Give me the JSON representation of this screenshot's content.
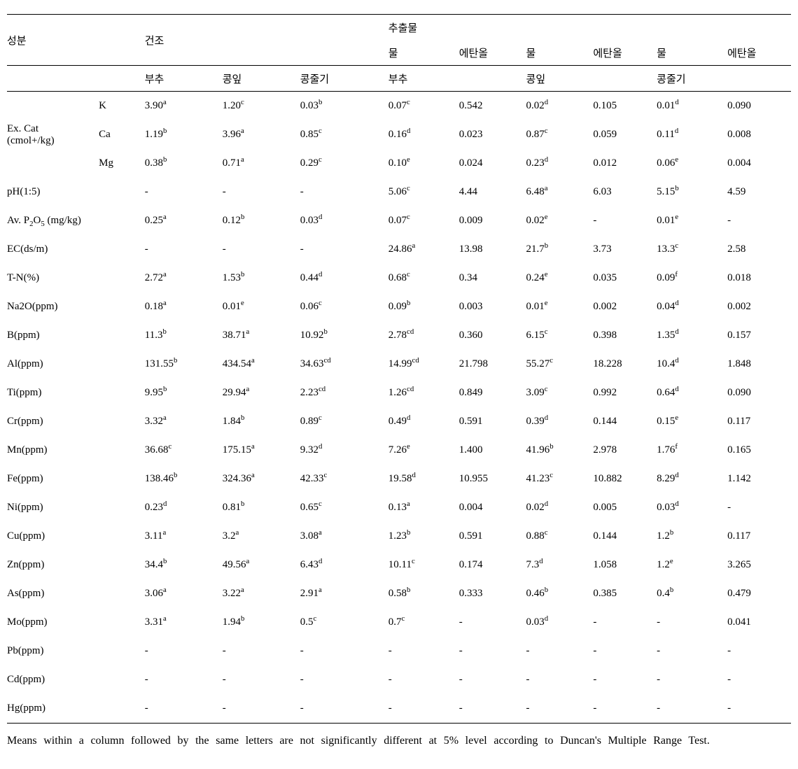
{
  "header": {
    "row_label": "성분",
    "dry_label": "건조",
    "extract_label": "추출물",
    "dry_cols": [
      "부추",
      "콩잎",
      "콩줄기"
    ],
    "extract_top": [
      "물",
      "에탄올",
      "물",
      "에탄올",
      "물",
      "에탄올"
    ],
    "extract_groups": [
      "부추",
      "콩잎",
      "콩줄기"
    ]
  },
  "excat": {
    "label": "Ex. Cat",
    "unit": "(cmol+/kg)",
    "K": {
      "sym": "K",
      "d": [
        {
          "v": "3.90",
          "s": "a"
        },
        {
          "v": "1.20",
          "s": "c"
        },
        {
          "v": "0.03",
          "s": "b"
        }
      ],
      "e": [
        {
          "v": "0.07",
          "s": "c"
        },
        {
          "v": "0.542"
        },
        {
          "v": "0.02",
          "s": "d"
        },
        {
          "v": "0.105"
        },
        {
          "v": "0.01",
          "s": "d"
        },
        {
          "v": "0.090"
        }
      ]
    },
    "Ca": {
      "sym": "Ca",
      "d": [
        {
          "v": "1.19",
          "s": "b"
        },
        {
          "v": "3.96",
          "s": "a"
        },
        {
          "v": "0.85",
          "s": "c"
        }
      ],
      "e": [
        {
          "v": "0.16",
          "s": "d"
        },
        {
          "v": "0.023"
        },
        {
          "v": "0.87",
          "s": "c"
        },
        {
          "v": "0.059"
        },
        {
          "v": "0.11",
          "s": "d"
        },
        {
          "v": "0.008"
        }
      ]
    },
    "Mg": {
      "sym": "Mg",
      "d": [
        {
          "v": "0.38",
          "s": "b"
        },
        {
          "v": "0.71",
          "s": "a"
        },
        {
          "v": "0.29",
          "s": "c"
        }
      ],
      "e": [
        {
          "v": "0.10",
          "s": "e"
        },
        {
          "v": "0.024"
        },
        {
          "v": "0.23",
          "s": "d"
        },
        {
          "v": "0.012"
        },
        {
          "v": "0.06",
          "s": "e"
        },
        {
          "v": "0.004"
        }
      ]
    }
  },
  "rows": [
    {
      "label": "pH(1:5)",
      "d": [
        {
          "v": "-"
        },
        {
          "v": "-"
        },
        {
          "v": "-"
        }
      ],
      "e": [
        {
          "v": "5.06",
          "s": "c"
        },
        {
          "v": "4.44"
        },
        {
          "v": "6.48",
          "s": "a"
        },
        {
          "v": "6.03"
        },
        {
          "v": "5.15",
          "s": "b"
        },
        {
          "v": "4.59"
        }
      ]
    },
    {
      "label": "Av. P2O5 (mg/kg)",
      "p2o5": true,
      "d": [
        {
          "v": "0.25",
          "s": "a"
        },
        {
          "v": "0.12",
          "s": "b"
        },
        {
          "v": "0.03",
          "s": "d"
        }
      ],
      "e": [
        {
          "v": "0.07",
          "s": "c"
        },
        {
          "v": "0.009"
        },
        {
          "v": "0.02",
          "s": "e"
        },
        {
          "v": "-"
        },
        {
          "v": "0.01",
          "s": "e"
        },
        {
          "v": "-"
        }
      ]
    },
    {
      "label": "EC(ds/m)",
      "d": [
        {
          "v": "-"
        },
        {
          "v": "-"
        },
        {
          "v": "-"
        }
      ],
      "e": [
        {
          "v": "24.86",
          "s": "a"
        },
        {
          "v": "13.98"
        },
        {
          "v": "21.7",
          "s": "b"
        },
        {
          "v": "3.73"
        },
        {
          "v": "13.3",
          "s": "c"
        },
        {
          "v": "2.58"
        }
      ]
    },
    {
      "label": "T-N(%)",
      "d": [
        {
          "v": "2.72",
          "s": "a"
        },
        {
          "v": "1.53",
          "s": "b"
        },
        {
          "v": "0.44",
          "s": "d"
        }
      ],
      "e": [
        {
          "v": "0.68",
          "s": "c"
        },
        {
          "v": "0.34"
        },
        {
          "v": "0.24",
          "s": "e"
        },
        {
          "v": "0.035"
        },
        {
          "v": "0.09",
          "s": "f"
        },
        {
          "v": "0.018"
        }
      ]
    },
    {
      "label": "Na2O(ppm)",
      "d": [
        {
          "v": "0.18",
          "s": "a"
        },
        {
          "v": "0.01",
          "s": "e"
        },
        {
          "v": "0.06",
          "s": "c"
        }
      ],
      "e": [
        {
          "v": "0.09",
          "s": "b"
        },
        {
          "v": "0.003"
        },
        {
          "v": "0.01",
          "s": "e"
        },
        {
          "v": "0.002"
        },
        {
          "v": "0.04",
          "s": "d"
        },
        {
          "v": "0.002"
        }
      ]
    },
    {
      "label": "B(ppm)",
      "d": [
        {
          "v": "11.3",
          "s": "b"
        },
        {
          "v": "38.71",
          "s": "a"
        },
        {
          "v": "10.92",
          "s": "b"
        }
      ],
      "e": [
        {
          "v": "2.78",
          "s": "cd"
        },
        {
          "v": "0.360"
        },
        {
          "v": "6.15",
          "s": "c"
        },
        {
          "v": "0.398"
        },
        {
          "v": "1.35",
          "s": "d"
        },
        {
          "v": "0.157"
        }
      ]
    },
    {
      "label": "Al(ppm)",
      "d": [
        {
          "v": "131.55",
          "s": "b"
        },
        {
          "v": "434.54",
          "s": "a"
        },
        {
          "v": "34.63",
          "s": "cd"
        }
      ],
      "e": [
        {
          "v": "14.99",
          "s": "cd"
        },
        {
          "v": "21.798"
        },
        {
          "v": "55.27",
          "s": "c"
        },
        {
          "v": "18.228"
        },
        {
          "v": "10.4",
          "s": "d"
        },
        {
          "v": "1.848"
        }
      ]
    },
    {
      "label": "Ti(ppm)",
      "d": [
        {
          "v": "9.95",
          "s": "b"
        },
        {
          "v": "29.94",
          "s": "a"
        },
        {
          "v": "2.23",
          "s": "cd"
        }
      ],
      "e": [
        {
          "v": "1.26",
          "s": "cd"
        },
        {
          "v": "0.849"
        },
        {
          "v": "3.09",
          "s": "c"
        },
        {
          "v": "0.992"
        },
        {
          "v": "0.64",
          "s": "d"
        },
        {
          "v": "0.090"
        }
      ]
    },
    {
      "label": "Cr(ppm)",
      "d": [
        {
          "v": "3.32",
          "s": "a"
        },
        {
          "v": "1.84",
          "s": "b"
        },
        {
          "v": "0.89",
          "s": "c"
        }
      ],
      "e": [
        {
          "v": "0.49",
          "s": "d"
        },
        {
          "v": "0.591"
        },
        {
          "v": "0.39",
          "s": "d"
        },
        {
          "v": "0.144"
        },
        {
          "v": "0.15",
          "s": "e"
        },
        {
          "v": "0.117"
        }
      ]
    },
    {
      "label": "Mn(ppm)",
      "d": [
        {
          "v": "36.68",
          "s": "c"
        },
        {
          "v": "175.15",
          "s": "a"
        },
        {
          "v": "9.32",
          "s": "d"
        }
      ],
      "e": [
        {
          "v": "7.26",
          "s": "e"
        },
        {
          "v": "1.400"
        },
        {
          "v": "41.96",
          "s": "b"
        },
        {
          "v": "2.978"
        },
        {
          "v": "1.76",
          "s": "f"
        },
        {
          "v": "0.165"
        }
      ]
    },
    {
      "label": "Fe(ppm)",
      "d": [
        {
          "v": "138.46",
          "s": "b"
        },
        {
          "v": "324.36",
          "s": "a"
        },
        {
          "v": "42.33",
          "s": "c"
        }
      ],
      "e": [
        {
          "v": "19.58",
          "s": "d"
        },
        {
          "v": "10.955"
        },
        {
          "v": "41.23",
          "s": "c"
        },
        {
          "v": "10.882"
        },
        {
          "v": "8.29",
          "s": "d"
        },
        {
          "v": "1.142"
        }
      ]
    },
    {
      "label": "Ni(ppm)",
      "d": [
        {
          "v": "0.23",
          "s": "d"
        },
        {
          "v": "0.81",
          "s": "b"
        },
        {
          "v": "0.65",
          "s": "c"
        }
      ],
      "e": [
        {
          "v": "0.13",
          "s": "a"
        },
        {
          "v": "0.004"
        },
        {
          "v": "0.02",
          "s": "d"
        },
        {
          "v": "0.005"
        },
        {
          "v": "0.03",
          "s": "d"
        },
        {
          "v": "-"
        }
      ]
    },
    {
      "label": "Cu(ppm)",
      "d": [
        {
          "v": "3.11",
          "s": "a"
        },
        {
          "v": "3.2",
          "s": "a"
        },
        {
          "v": "3.08",
          "s": "a"
        }
      ],
      "e": [
        {
          "v": "1.23",
          "s": "b"
        },
        {
          "v": "0.591"
        },
        {
          "v": "0.88",
          "s": "c"
        },
        {
          "v": "0.144"
        },
        {
          "v": "1.2",
          "s": "b"
        },
        {
          "v": "0.117"
        }
      ]
    },
    {
      "label": "Zn(ppm)",
      "d": [
        {
          "v": "34.4",
          "s": "b"
        },
        {
          "v": "49.56",
          "s": "a"
        },
        {
          "v": "6.43",
          "s": "d"
        }
      ],
      "e": [
        {
          "v": "10.11",
          "s": "c"
        },
        {
          "v": "0.174"
        },
        {
          "v": "7.3",
          "s": "d"
        },
        {
          "v": "1.058"
        },
        {
          "v": "1.2",
          "s": "e"
        },
        {
          "v": "3.265"
        }
      ]
    },
    {
      "label": "As(ppm)",
      "d": [
        {
          "v": "3.06",
          "s": "a"
        },
        {
          "v": "3.22",
          "s": "a"
        },
        {
          "v": "2.91",
          "s": "a"
        }
      ],
      "e": [
        {
          "v": "0.58",
          "s": "b"
        },
        {
          "v": "0.333"
        },
        {
          "v": "0.46",
          "s": "b"
        },
        {
          "v": "0.385"
        },
        {
          "v": "0.4",
          "s": "b"
        },
        {
          "v": "0.479"
        }
      ]
    },
    {
      "label": "Mo(ppm)",
      "d": [
        {
          "v": "3.31",
          "s": "a"
        },
        {
          "v": "1.94",
          "s": "b"
        },
        {
          "v": "0.5",
          "s": "c"
        }
      ],
      "e": [
        {
          "v": "0.7",
          "s": "c"
        },
        {
          "v": "-"
        },
        {
          "v": "0.03",
          "s": "d"
        },
        {
          "v": "-"
        },
        {
          "v": "-"
        },
        {
          "v": "0.041"
        }
      ]
    },
    {
      "label": "Pb(ppm)",
      "d": [
        {
          "v": "-"
        },
        {
          "v": "-"
        },
        {
          "v": "-"
        }
      ],
      "e": [
        {
          "v": "-"
        },
        {
          "v": "-"
        },
        {
          "v": "-"
        },
        {
          "v": "-"
        },
        {
          "v": "-"
        },
        {
          "v": "-"
        }
      ]
    },
    {
      "label": "Cd(ppm)",
      "d": [
        {
          "v": "-"
        },
        {
          "v": "-"
        },
        {
          "v": "-"
        }
      ],
      "e": [
        {
          "v": "-"
        },
        {
          "v": "-"
        },
        {
          "v": "-"
        },
        {
          "v": "-"
        },
        {
          "v": "-"
        },
        {
          "v": "-"
        }
      ]
    },
    {
      "label": "Hg(ppm)",
      "d": [
        {
          "v": "-"
        },
        {
          "v": "-"
        },
        {
          "v": "-"
        }
      ],
      "e": [
        {
          "v": "-"
        },
        {
          "v": "-"
        },
        {
          "v": "-"
        },
        {
          "v": "-"
        },
        {
          "v": "-"
        },
        {
          "v": "-"
        }
      ]
    }
  ],
  "footnote": "Means within a column followed by the same letters are not significantly different at 5% level according to Duncan's Multiple Range Test."
}
